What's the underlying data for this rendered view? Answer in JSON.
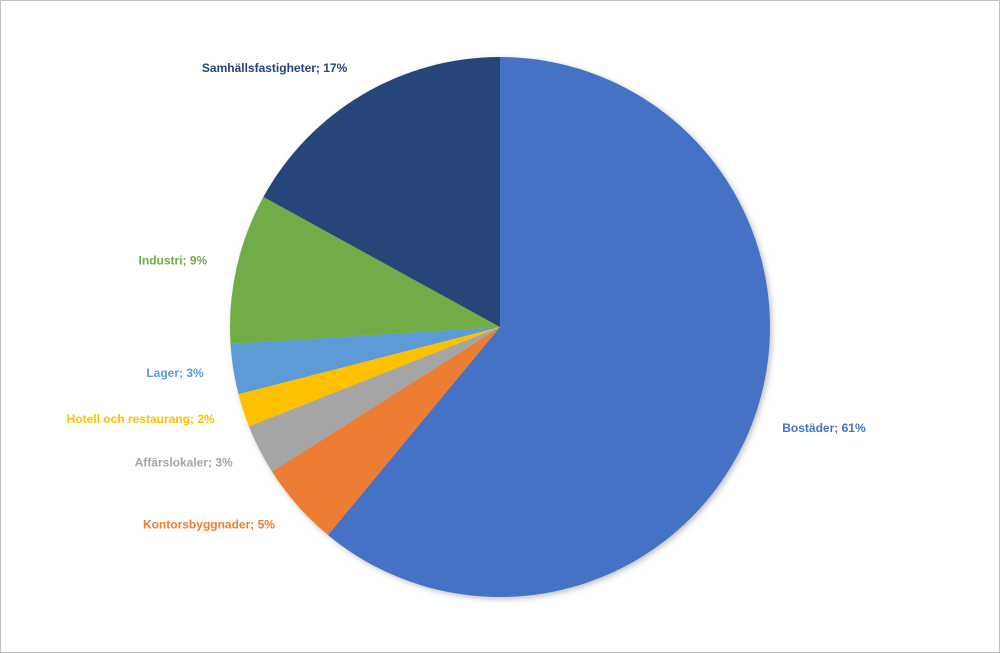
{
  "chart_data": {
    "type": "pie",
    "values": [
      61,
      5,
      3,
      2,
      3,
      9,
      17
    ],
    "value_labels": [
      "Bostäder; 61%",
      "Kontorsbyggnader; 5%",
      "Affärslokaler; 3%",
      "Hotell och restaurang; 2%",
      "Lager; 3%",
      "Industri; 9%",
      "Samhällsfastigheter; 17%"
    ],
    "colors": [
      "#4472c4",
      "#ed7d31",
      "#a5a5a5",
      "#ffc000",
      "#5b9bd5",
      "#70ad47",
      "#264478"
    ]
  }
}
